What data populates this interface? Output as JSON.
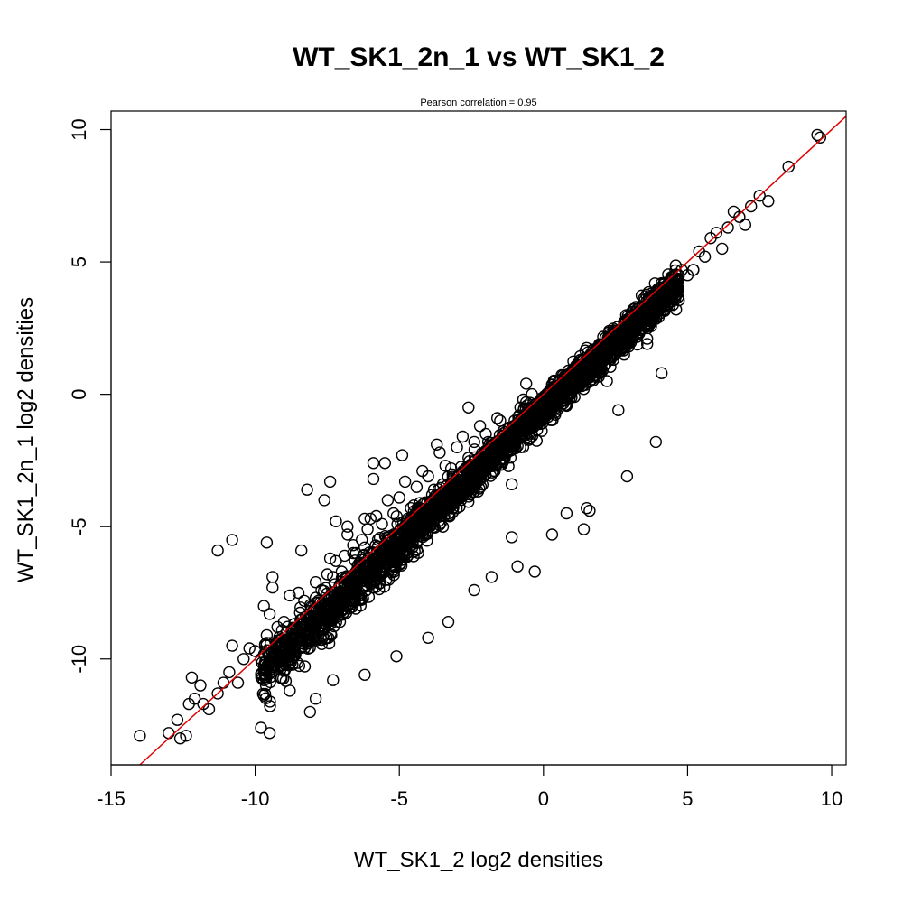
{
  "chart_data": {
    "type": "scatter",
    "title": "WT_SK1_2n_1 vs WT_SK1_2",
    "subtitle": "Pearson correlation =  0.95",
    "xlabel": "WT_SK1_2 log2 densities",
    "ylabel": "WT_SK1_2n_1 log2 densities",
    "xlim": [
      -15,
      10.5
    ],
    "ylim": [
      -14,
      10.7
    ],
    "x_ticks": [
      -15,
      -10,
      -5,
      0,
      5,
      10
    ],
    "y_ticks": [
      -10,
      -5,
      0,
      5,
      10
    ],
    "grid": false,
    "marker": "open-circle",
    "point_color": "#000000",
    "line_color": "#e00000",
    "reference_line": {
      "intercept": 0,
      "slope": 1
    },
    "points": {
      "x": [
        -14.0,
        -12.6,
        -12.4,
        -12.3,
        -12.2,
        -12.1,
        -11.9,
        -11.6,
        -11.3,
        -11.1,
        -10.9,
        -10.8,
        -10.6,
        -10.4,
        -10.2,
        -10.0,
        -9.8,
        -9.6,
        -9.5,
        -9.2,
        -9.0,
        -8.7,
        -8.5,
        -8.3,
        -8.1,
        -7.9,
        -7.7,
        -7.5,
        -7.4,
        -7.3,
        -7.2,
        -7.0,
        -6.9,
        -6.8,
        -6.6,
        -6.5,
        -6.3,
        -6.1,
        -6.0,
        -5.8,
        -5.6,
        -5.4,
        -5.2,
        -5.0,
        -4.8,
        -4.6,
        -4.4,
        -4.2,
        -4.0,
        -3.8,
        -3.6,
        -3.4,
        -3.2,
        -3.0,
        -2.8,
        -2.6,
        -2.4,
        -2.2,
        -2.0,
        -1.8,
        -1.6,
        -1.4,
        -1.2,
        -1.0,
        -0.8,
        -0.6,
        -0.4,
        -0.2,
        0.0,
        0.2,
        0.4,
        0.6,
        0.8,
        1.0,
        1.2,
        1.4,
        1.6,
        1.8,
        2.0,
        2.2,
        2.4,
        2.6,
        2.8,
        3.0,
        3.2,
        3.4,
        3.6,
        3.8,
        4.0,
        4.2,
        4.4,
        4.6,
        4.8,
        5.0,
        5.2,
        5.4,
        5.6,
        5.8,
        6.0,
        6.2,
        6.4,
        6.6,
        6.8,
        7.0,
        7.2,
        7.5,
        7.8,
        8.5,
        9.5,
        9.6,
        -9.6,
        -9.4,
        -8.8,
        -8.4,
        -6.8,
        -6.2,
        -5.9,
        -5.5,
        -4.5,
        -3.7,
        -2.1,
        -1.9,
        -1.1,
        -0.6,
        0.8,
        1.6,
        2.6,
        4.1,
        5.2,
        -11.3,
        -10.8,
        -9.7,
        -9.4,
        -8.2,
        -7.6,
        -7.4,
        -7.2,
        -6.6,
        -5.9,
        -4.9,
        -2.6,
        -1.8,
        -1.5,
        -1.1,
        -0.7,
        -0.3,
        0.9,
        1.4,
        2.3,
        3.6,
        4.6,
        -13.0,
        -12.7,
        -11.8,
        -9.8,
        -9.5,
        -8.8,
        -8.1,
        -7.9,
        -7.3,
        -6.2,
        -5.1,
        -4.0,
        -3.3,
        -2.4,
        -0.9,
        0.3,
        1.5,
        2.9,
        3.9
      ],
      "y": [
        -12.9,
        -13.0,
        -12.9,
        -11.7,
        -10.7,
        -11.5,
        -11.0,
        -11.9,
        -11.3,
        -10.9,
        -10.5,
        -9.5,
        -10.9,
        -10.0,
        -9.6,
        -9.7,
        -10.0,
        -9.1,
        -8.3,
        -9.4,
        -8.6,
        -8.9,
        -7.5,
        -7.8,
        -8.4,
        -7.1,
        -7.4,
        -6.8,
        -6.2,
        -6.9,
        -6.3,
        -6.7,
        -6.1,
        -5.3,
        -5.7,
        -6.0,
        -5.5,
        -5.1,
        -4.7,
        -4.6,
        -4.9,
        -4.0,
        -4.5,
        -3.9,
        -3.3,
        -4.3,
        -3.5,
        -2.9,
        -3.1,
        -3.6,
        -2.2,
        -2.7,
        -2.8,
        -2.0,
        -1.6,
        -2.4,
        -1.8,
        -1.2,
        -1.5,
        -2.0,
        -0.9,
        -1.4,
        -1.3,
        -1.0,
        -0.5,
        -0.3,
        0.0,
        -0.9,
        -0.4,
        -0.1,
        0.5,
        -0.3,
        0.1,
        0.9,
        0.6,
        0.2,
        1.3,
        1.7,
        1.0,
        0.5,
        1.7,
        2.1,
        1.5,
        2.0,
        3.3,
        2.5,
        2.1,
        3.0,
        3.6,
        3.2,
        4.3,
        4.0,
        4.7,
        4.5,
        4.7,
        5.4,
        5.2,
        5.9,
        6.1,
        5.5,
        6.3,
        6.9,
        6.7,
        6.4,
        7.1,
        7.5,
        7.3,
        8.6,
        9.8,
        9.7,
        -5.6,
        -6.9,
        -7.6,
        -5.9,
        -5.0,
        -4.7,
        -3.2,
        -2.6,
        -4.2,
        -1.9,
        -3.1,
        -2.4,
        -3.4,
        0.4,
        -4.5,
        -4.4,
        -0.6,
        0.8,
        4.7,
        -5.9,
        -5.5,
        -8.0,
        -7.3,
        -3.6,
        -4.0,
        -3.3,
        -4.8,
        -6.0,
        -2.6,
        -2.3,
        -0.5,
        -6.9,
        -1.0,
        -5.4,
        -0.2,
        -6.7,
        0.3,
        -5.1,
        1.4,
        1.9,
        3.2,
        -12.8,
        -12.3,
        -11.7,
        -12.6,
        -12.8,
        -11.2,
        -12.0,
        -11.5,
        -10.8,
        -10.6,
        -9.9,
        -9.2,
        -8.6,
        -7.4,
        -6.5,
        -5.3,
        -4.3,
        -3.1,
        -1.8
      ]
    }
  }
}
